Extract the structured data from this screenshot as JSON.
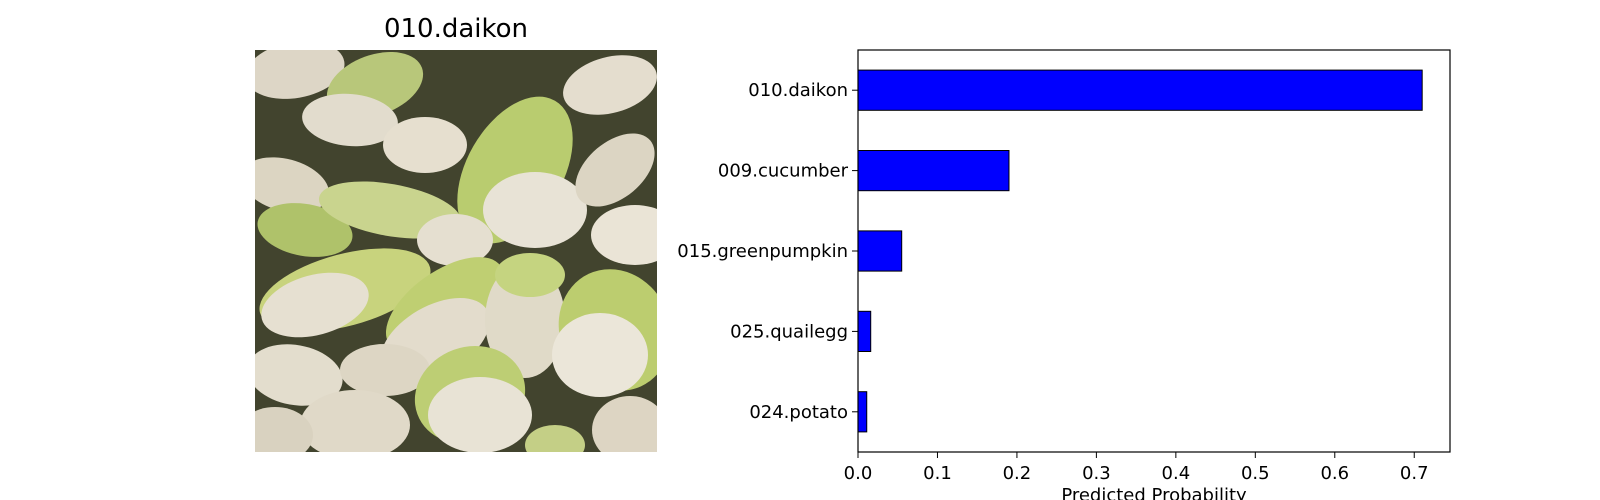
{
  "image_panel": {
    "title": "010.daikon",
    "image": "photo of a pile of daikon radishes"
  },
  "chart_data": {
    "type": "bar",
    "orientation": "horizontal",
    "categories": [
      "010.daikon",
      "009.cucumber",
      "015.greenpumpkin",
      "025.quailegg",
      "024.potato"
    ],
    "values": [
      0.71,
      0.19,
      0.055,
      0.016,
      0.011
    ],
    "xlabel": "Predicted Probability",
    "ylabel": "",
    "xlim": [
      0,
      0.745
    ],
    "xticks": [
      "0.0",
      "0.1",
      "0.2",
      "0.3",
      "0.4",
      "0.5",
      "0.6",
      "0.7"
    ],
    "bar_color": "#0000ff",
    "edge_color": "#000000",
    "grid": false,
    "legend": "none"
  }
}
